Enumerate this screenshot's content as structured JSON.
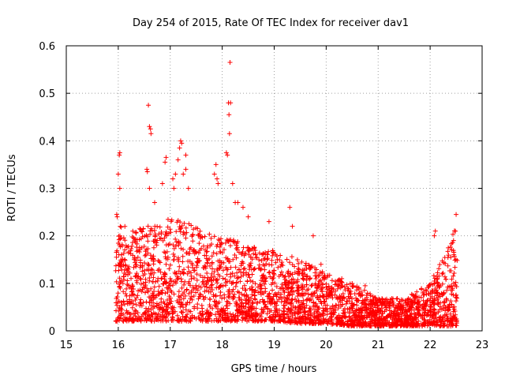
{
  "chart_data": {
    "type": "scatter",
    "title": "Day 254 of 2015, Rate Of TEC Index for receiver dav1",
    "xlabel": "GPS time / hours",
    "ylabel": "ROTI / TECUs",
    "xlim": [
      15,
      23
    ],
    "ylim": [
      0,
      0.6
    ],
    "xticks": [
      "15",
      "16",
      "17",
      "18",
      "19",
      "20",
      "21",
      "22",
      "23"
    ],
    "yticks": [
      "0",
      "0.1",
      "0.2",
      "0.3",
      "0.4",
      "0.5",
      "0.6"
    ],
    "grid": true,
    "marker": "+",
    "color": "#ff0000",
    "series": [
      {
        "name": "ROTI",
        "x_range": [
          15.95,
          22.52
        ],
        "envelope_hours": [
          16.0,
          16.5,
          17.0,
          17.5,
          18.0,
          18.5,
          19.0,
          19.5,
          20.0,
          20.5,
          21.0,
          21.5,
          22.0,
          22.5
        ],
        "typical_max": [
          0.22,
          0.22,
          0.24,
          0.22,
          0.2,
          0.18,
          0.17,
          0.15,
          0.12,
          0.1,
          0.07,
          0.07,
          0.1,
          0.22
        ],
        "typical_min": [
          0.02,
          0.02,
          0.02,
          0.02,
          0.02,
          0.02,
          0.02,
          0.015,
          0.015,
          0.01,
          0.01,
          0.01,
          0.01,
          0.01
        ],
        "peaks": [
          [
            15.97,
            0.245
          ],
          [
            15.98,
            0.24
          ],
          [
            16.0,
            0.33
          ],
          [
            16.02,
            0.37
          ],
          [
            16.03,
            0.375
          ],
          [
            16.03,
            0.3
          ],
          [
            16.55,
            0.34
          ],
          [
            16.56,
            0.335
          ],
          [
            16.58,
            0.475
          ],
          [
            16.6,
            0.43
          ],
          [
            16.62,
            0.425
          ],
          [
            16.63,
            0.415
          ],
          [
            16.6,
            0.3
          ],
          [
            16.7,
            0.27
          ],
          [
            16.85,
            0.31
          ],
          [
            16.9,
            0.355
          ],
          [
            16.92,
            0.365
          ],
          [
            17.05,
            0.32
          ],
          [
            17.07,
            0.3
          ],
          [
            17.1,
            0.33
          ],
          [
            17.15,
            0.36
          ],
          [
            17.18,
            0.385
          ],
          [
            17.2,
            0.4
          ],
          [
            17.22,
            0.395
          ],
          [
            17.25,
            0.33
          ],
          [
            17.3,
            0.37
          ],
          [
            17.3,
            0.34
          ],
          [
            17.35,
            0.3
          ],
          [
            17.85,
            0.33
          ],
          [
            17.88,
            0.35
          ],
          [
            17.9,
            0.32
          ],
          [
            17.92,
            0.31
          ],
          [
            18.08,
            0.375
          ],
          [
            18.1,
            0.37
          ],
          [
            18.12,
            0.48
          ],
          [
            18.13,
            0.455
          ],
          [
            18.14,
            0.415
          ],
          [
            18.15,
            0.565
          ],
          [
            18.16,
            0.48
          ],
          [
            18.2,
            0.31
          ],
          [
            18.25,
            0.27
          ],
          [
            18.3,
            0.27
          ],
          [
            18.4,
            0.26
          ],
          [
            18.5,
            0.24
          ],
          [
            18.9,
            0.23
          ],
          [
            19.3,
            0.26
          ],
          [
            19.35,
            0.22
          ],
          [
            19.75,
            0.2
          ],
          [
            19.9,
            0.14
          ],
          [
            20.3,
            0.11
          ],
          [
            20.75,
            0.095
          ],
          [
            22.08,
            0.2
          ],
          [
            22.1,
            0.21
          ],
          [
            22.5,
            0.245
          ],
          [
            22.45,
            0.19
          ]
        ]
      }
    ]
  }
}
